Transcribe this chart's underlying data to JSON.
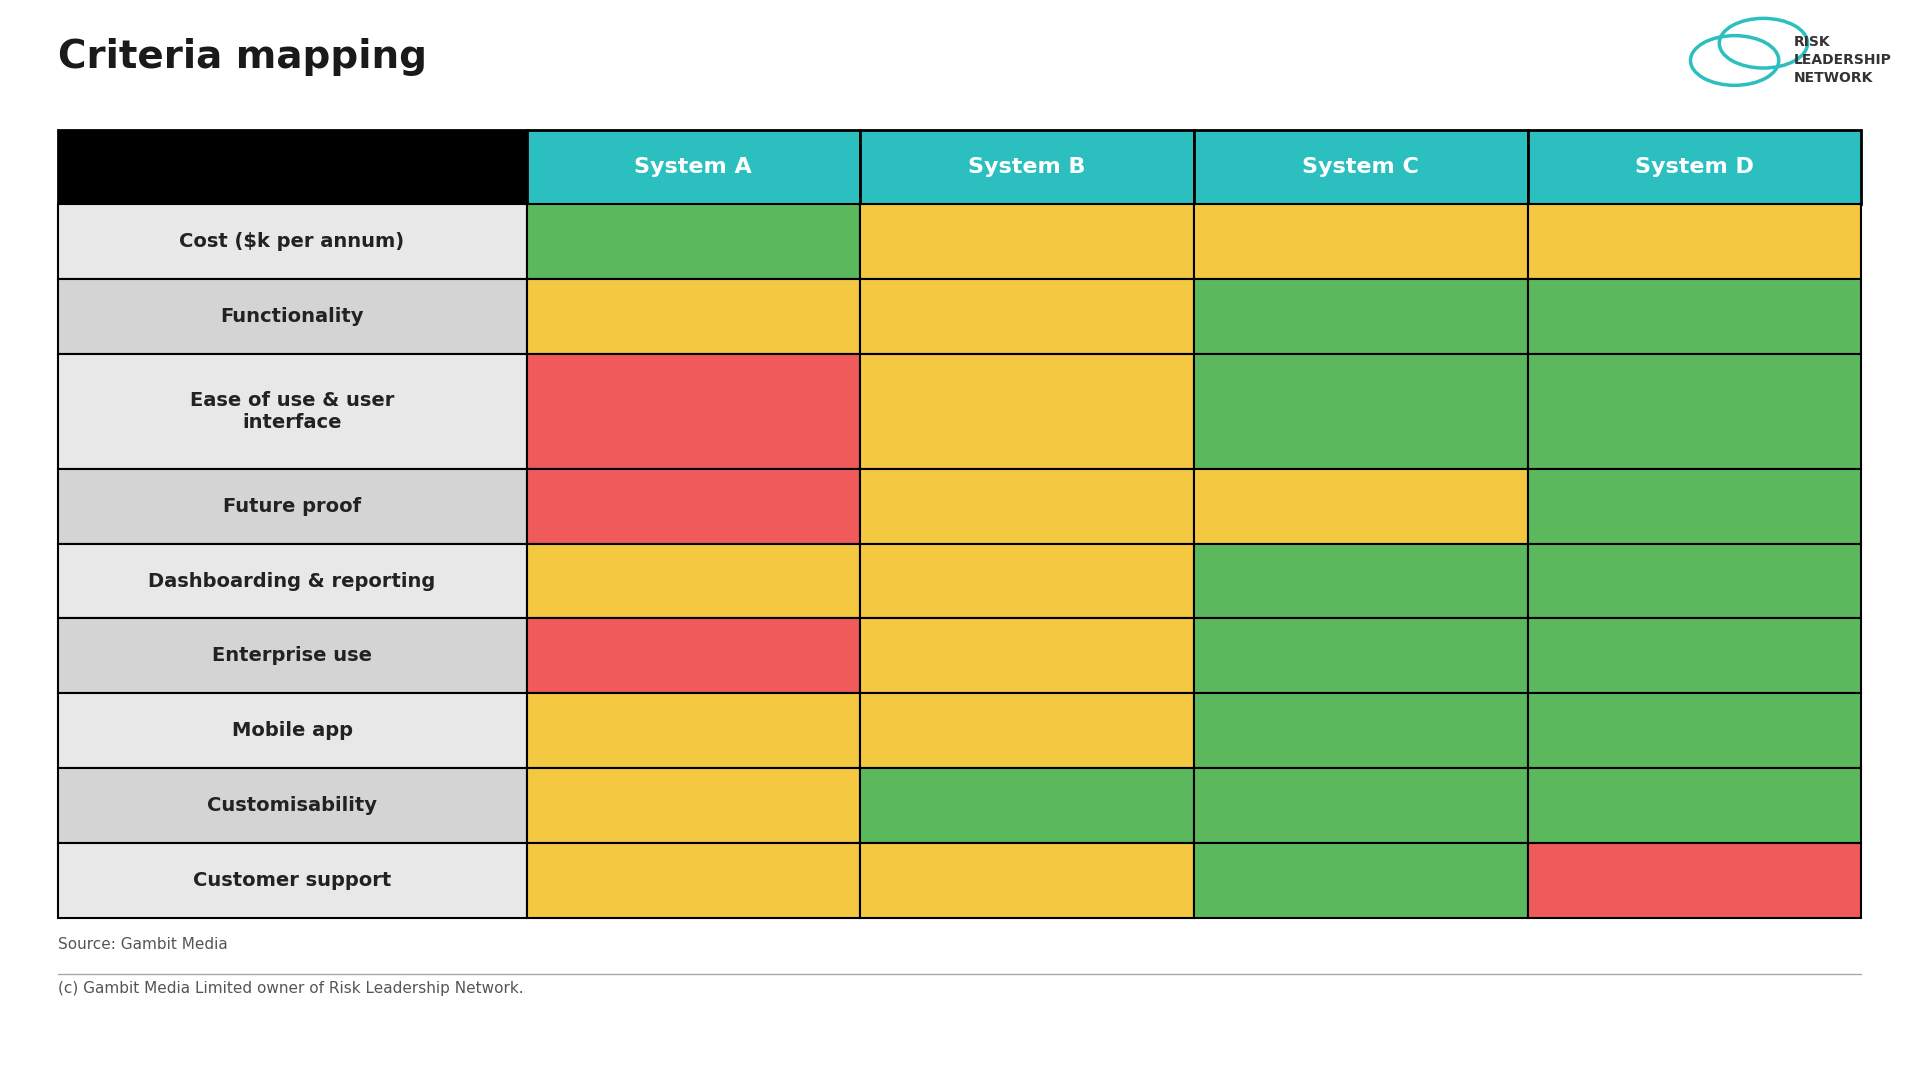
{
  "title": "Criteria mapping",
  "background_color": "#ffffff",
  "systems": [
    "System A",
    "System B",
    "System C",
    "System D"
  ],
  "criteria": [
    "Cost ($k per annum)",
    "Functionality",
    "Ease of use & user\ninterface",
    "Future proof",
    "Dashboarding & reporting",
    "Enterprise use",
    "Mobile app",
    "Customisability",
    "Customer support"
  ],
  "colors": {
    "green": "#5cb85c",
    "yellow": "#f5c842",
    "red": "#f05a5a"
  },
  "cell_data": [
    [
      "green",
      "yellow",
      "yellow",
      "yellow"
    ],
    [
      "yellow",
      "yellow",
      "green",
      "green"
    ],
    [
      "red",
      "yellow",
      "green",
      "green"
    ],
    [
      "red",
      "yellow",
      "yellow",
      "green"
    ],
    [
      "yellow",
      "yellow",
      "green",
      "green"
    ],
    [
      "red",
      "yellow",
      "green",
      "green"
    ],
    [
      "yellow",
      "yellow",
      "green",
      "green"
    ],
    [
      "yellow",
      "green",
      "green",
      "green"
    ],
    [
      "yellow",
      "yellow",
      "green",
      "red"
    ]
  ],
  "source_text": "Source: Gambit Media",
  "footer_text": "(c) Gambit Media Limited owner of Risk Leadership Network.",
  "header_row_color": "#2bbfbf",
  "title_fontsize": 28,
  "header_fontsize": 16,
  "cell_fontsize": 14
}
